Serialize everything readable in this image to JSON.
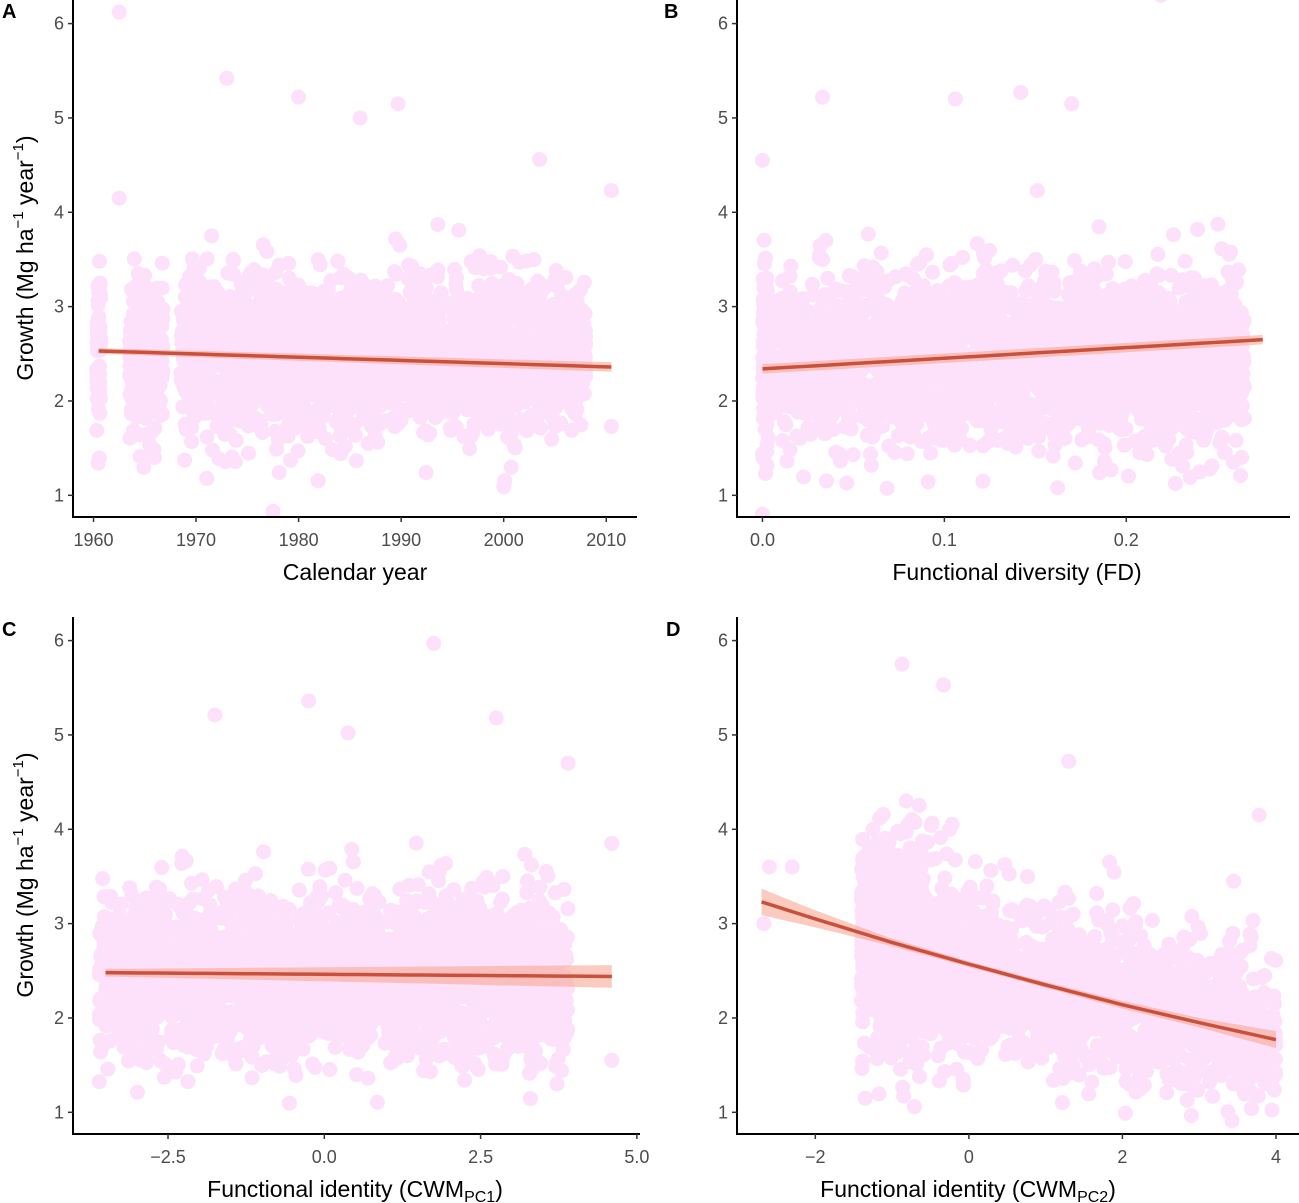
{
  "chart_data": [
    {
      "panel": "A",
      "type": "scatter",
      "xlabel": "Calendar year",
      "ylabel": {
        "main": "Growth (Mg  ha",
        "sup1": "−1",
        "mid": "  year",
        "sup2": "−1",
        "end": ")"
      },
      "xlim": [
        1958,
        2013
      ],
      "ylim": [
        0.77,
        6.25
      ],
      "xticks": [
        1960,
        1970,
        1980,
        1990,
        2000,
        2010
      ],
      "yticks": [
        1,
        2,
        3,
        4,
        5,
        6
      ],
      "fit": {
        "x": [
          1960.5,
          2010.5
        ],
        "y": [
          2.53,
          2.36
        ],
        "ci_halfwidth": [
          0.03,
          0.05
        ]
      },
      "highlighted_points": [
        [
          1962.5,
          6.12
        ],
        [
          1973,
          5.42
        ],
        [
          1980,
          5.22
        ],
        [
          1989.7,
          5.15
        ],
        [
          1986,
          5.0
        ],
        [
          2010.5,
          4.23
        ],
        [
          2003.5,
          4.56
        ],
        [
          1977.5,
          0.83
        ],
        [
          2010.5,
          1.73
        ],
        [
          1962.5,
          4.15
        ]
      ],
      "grid": false
    },
    {
      "panel": "B",
      "type": "scatter",
      "xlabel": "Functional diversity (FD)",
      "ylabel": null,
      "xlim": [
        -0.014,
        0.29
      ],
      "ylim": [
        0.77,
        6.25
      ],
      "xticks": [
        "0.0",
        "0.1",
        "0.2"
      ],
      "yticks": [
        1,
        2,
        3,
        4,
        5,
        6
      ],
      "fit": {
        "x": [
          0.0,
          0.275
        ],
        "y": [
          2.34,
          2.65
        ],
        "ci_halfwidth": [
          0.05,
          0.05
        ]
      },
      "highlighted_points": [
        [
          0.033,
          5.22
        ],
        [
          0.106,
          5.2
        ],
        [
          0.142,
          5.27
        ],
        [
          0.17,
          5.15
        ],
        [
          0.219,
          6.3
        ],
        [
          0.0,
          0.8
        ],
        [
          0.0,
          4.55
        ]
      ],
      "grid": false
    },
    {
      "panel": "C",
      "type": "scatter",
      "xlabel": {
        "main": "Functional identity (CWM",
        "sub": "PC1",
        "end": ")"
      },
      "ylabel": {
        "main": "Growth (Mg  ha",
        "sup1": "−1",
        "mid": "  year",
        "sup2": "−1",
        "end": ")"
      },
      "xlim": [
        -4.02,
        5.05
      ],
      "ylim": [
        0.77,
        6.25
      ],
      "xticks": [
        "−2.5",
        "0.0",
        "2.5",
        "5.0"
      ],
      "yticks": [
        1,
        2,
        3,
        4,
        5,
        6
      ],
      "fit": {
        "x": [
          -3.5,
          4.6
        ],
        "y": [
          2.48,
          2.44
        ],
        "ci_halfwidth": [
          0.04,
          0.12
        ]
      },
      "highlighted_points": [
        [
          1.75,
          5.97
        ],
        [
          -0.25,
          5.36
        ],
        [
          -1.75,
          5.21
        ],
        [
          2.75,
          5.18
        ],
        [
          0.38,
          5.02
        ],
        [
          4.6,
          3.85
        ],
        [
          4.6,
          1.55
        ],
        [
          3.9,
          4.7
        ]
      ],
      "grid": false
    },
    {
      "panel": "D",
      "type": "scatter",
      "xlabel": {
        "main": "Functional identity (CWM",
        "sub": "PC2",
        "end": ")"
      },
      "ylabel": null,
      "xlim": [
        -3.02,
        4.3
      ],
      "ylim": [
        0.77,
        6.25
      ],
      "xticks": [
        "−2",
        "0",
        "2",
        "4"
      ],
      "yticks": [
        1,
        2,
        3,
        4,
        5,
        6
      ],
      "fit": {
        "x": [
          -2.7,
          -2,
          -1,
          0,
          1,
          2,
          3,
          4
        ],
        "y": [
          3.23,
          3.05,
          2.8,
          2.57,
          2.35,
          2.14,
          1.95,
          1.77
        ],
        "ci_halfwidth": [
          0.14,
          0.09,
          0.04,
          0.03,
          0.03,
          0.04,
          0.05,
          0.09
        ]
      },
      "highlighted_points": [
        [
          -0.87,
          5.75
        ],
        [
          -0.33,
          5.53
        ],
        [
          1.3,
          4.72
        ],
        [
          3.78,
          4.15
        ],
        [
          -2.67,
          3.0
        ],
        [
          -2.6,
          3.6
        ],
        [
          -2.3,
          3.6
        ],
        [
          3.45,
          3.45
        ]
      ],
      "grid": false
    }
  ],
  "colors": {
    "points": "#fde0fa",
    "fit_line": "#c8503c",
    "ribbon": "#f6a892",
    "axis": "#000000",
    "tick_label": "#4d4d4d"
  }
}
